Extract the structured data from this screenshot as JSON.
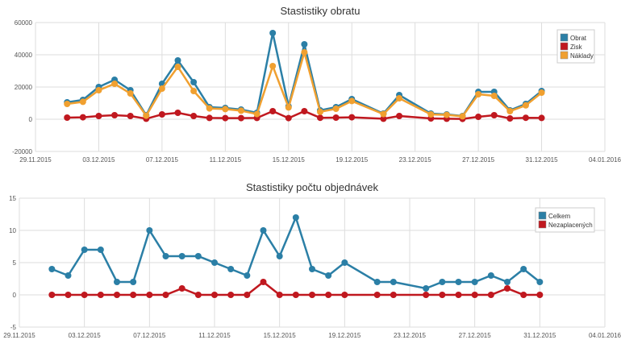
{
  "chart_data": [
    {
      "type": "line",
      "title": "Stastistiky obratu",
      "xlabel": "",
      "ylabel": "",
      "x_ticks": [
        "29.11.2015",
        "03.12.2015",
        "07.12.2015",
        "11.12.2015",
        "15.12.2015",
        "19.12.2015",
        "23.12.2015",
        "27.12.2015",
        "31.12.2015",
        "04.01.2016"
      ],
      "y_ticks": [
        "60000",
        "40000",
        "20000",
        "0",
        "-20000"
      ],
      "ylim": [
        -20000,
        60000
      ],
      "xlim_days": [
        0,
        36
      ],
      "grid": true,
      "legend_position": "top-right",
      "series": [
        {
          "name": "Obrat",
          "color": "#2b7fa6",
          "points": [
            [
              2,
              10500
            ],
            [
              3,
              12000
            ],
            [
              4,
              20000
            ],
            [
              5,
              24500
            ],
            [
              6,
              18000
            ],
            [
              7,
              2500
            ],
            [
              8,
              22000
            ],
            [
              9,
              36500
            ],
            [
              10,
              23000
            ],
            [
              11,
              7500
            ],
            [
              12,
              7000
            ],
            [
              13,
              6000
            ],
            [
              14,
              4000
            ],
            [
              15,
              53500
            ],
            [
              16,
              8000
            ],
            [
              17,
              46500
            ],
            [
              18,
              5500
            ],
            [
              19,
              7500
            ],
            [
              20,
              12500
            ],
            [
              22,
              3500
            ],
            [
              23,
              15000
            ],
            [
              25,
              3500
            ],
            [
              26,
              3000
            ],
            [
              27,
              2000
            ],
            [
              28,
              17000
            ],
            [
              29,
              17000
            ],
            [
              30,
              5500
            ],
            [
              31,
              9500
            ],
            [
              32,
              17500
            ]
          ]
        },
        {
          "name": "Zisk",
          "color": "#c0181f",
          "points": [
            [
              2,
              1000
            ],
            [
              3,
              1200
            ],
            [
              4,
              2000
            ],
            [
              5,
              2500
            ],
            [
              6,
              2000
            ],
            [
              7,
              300
            ],
            [
              8,
              3000
            ],
            [
              9,
              4000
            ],
            [
              10,
              2000
            ],
            [
              11,
              800
            ],
            [
              12,
              700
            ],
            [
              13,
              700
            ],
            [
              14,
              800
            ],
            [
              15,
              5000
            ],
            [
              16,
              700
            ],
            [
              17,
              5000
            ],
            [
              18,
              900
            ],
            [
              19,
              1000
            ],
            [
              20,
              1200
            ],
            [
              22,
              300
            ],
            [
              23,
              2000
            ],
            [
              25,
              500
            ],
            [
              26,
              300
            ],
            [
              27,
              200
            ],
            [
              28,
              1500
            ],
            [
              29,
              2500
            ],
            [
              30,
              500
            ],
            [
              31,
              900
            ],
            [
              32,
              800
            ]
          ]
        },
        {
          "name": "Náklady",
          "color": "#f0a030",
          "points": [
            [
              2,
              9500
            ],
            [
              3,
              10800
            ],
            [
              4,
              18000
            ],
            [
              5,
              22000
            ],
            [
              6,
              16000
            ],
            [
              7,
              2200
            ],
            [
              8,
              19000
            ],
            [
              9,
              32500
            ],
            [
              10,
              17500
            ],
            [
              11,
              6700
            ],
            [
              12,
              6300
            ],
            [
              13,
              5300
            ],
            [
              14,
              3200
            ],
            [
              15,
              33000
            ],
            [
              16,
              7300
            ],
            [
              17,
              41500
            ],
            [
              18,
              4600
            ],
            [
              19,
              6500
            ],
            [
              20,
              11300
            ],
            [
              22,
              3200
            ],
            [
              23,
              13000
            ],
            [
              25,
              3000
            ],
            [
              26,
              2700
            ],
            [
              27,
              1800
            ],
            [
              28,
              15500
            ],
            [
              29,
              14500
            ],
            [
              30,
              5000
            ],
            [
              31,
              8600
            ],
            [
              32,
              16500
            ]
          ]
        }
      ]
    },
    {
      "type": "line",
      "title": "Stastistiky počtu objednávek",
      "xlabel": "",
      "ylabel": "",
      "x_ticks": [
        "29.11.2015",
        "03.12.2015",
        "07.12.2015",
        "11.12.2015",
        "15.12.2015",
        "19.12.2015",
        "23.12.2015",
        "27.12.2015",
        "31.12.2015",
        "04.01.2016"
      ],
      "y_ticks": [
        "15",
        "10",
        "5",
        "0",
        "-5"
      ],
      "ylim": [
        -5,
        15
      ],
      "xlim_days": [
        0,
        36
      ],
      "grid": true,
      "legend_position": "top-right",
      "series": [
        {
          "name": "Celkem",
          "color": "#2b7fa6",
          "points": [
            [
              2,
              4
            ],
            [
              3,
              3
            ],
            [
              4,
              7
            ],
            [
              5,
              7
            ],
            [
              6,
              2
            ],
            [
              7,
              2
            ],
            [
              8,
              10
            ],
            [
              9,
              6
            ],
            [
              10,
              6
            ],
            [
              11,
              6
            ],
            [
              12,
              5
            ],
            [
              13,
              4
            ],
            [
              14,
              3
            ],
            [
              15,
              10
            ],
            [
              16,
              6
            ],
            [
              17,
              12
            ],
            [
              18,
              4
            ],
            [
              19,
              3
            ],
            [
              20,
              5
            ],
            [
              22,
              2
            ],
            [
              23,
              2
            ],
            [
              25,
              1
            ],
            [
              26,
              2
            ],
            [
              27,
              2
            ],
            [
              28,
              2
            ],
            [
              29,
              3
            ],
            [
              30,
              2
            ],
            [
              31,
              4
            ],
            [
              32,
              2
            ]
          ]
        },
        {
          "name": "Nezaplacených",
          "color": "#c0181f",
          "points": [
            [
              2,
              0
            ],
            [
              3,
              0
            ],
            [
              4,
              0
            ],
            [
              5,
              0
            ],
            [
              6,
              0
            ],
            [
              7,
              0
            ],
            [
              8,
              0
            ],
            [
              9,
              0
            ],
            [
              10,
              1
            ],
            [
              11,
              0
            ],
            [
              12,
              0
            ],
            [
              13,
              0
            ],
            [
              14,
              0
            ],
            [
              15,
              2
            ],
            [
              16,
              0
            ],
            [
              17,
              0
            ],
            [
              18,
              0
            ],
            [
              19,
              0
            ],
            [
              20,
              0
            ],
            [
              22,
              0
            ],
            [
              23,
              0
            ],
            [
              25,
              0
            ],
            [
              26,
              0
            ],
            [
              27,
              0
            ],
            [
              28,
              0
            ],
            [
              29,
              0
            ],
            [
              30,
              1
            ],
            [
              31,
              0
            ],
            [
              32,
              0
            ]
          ]
        }
      ]
    }
  ]
}
